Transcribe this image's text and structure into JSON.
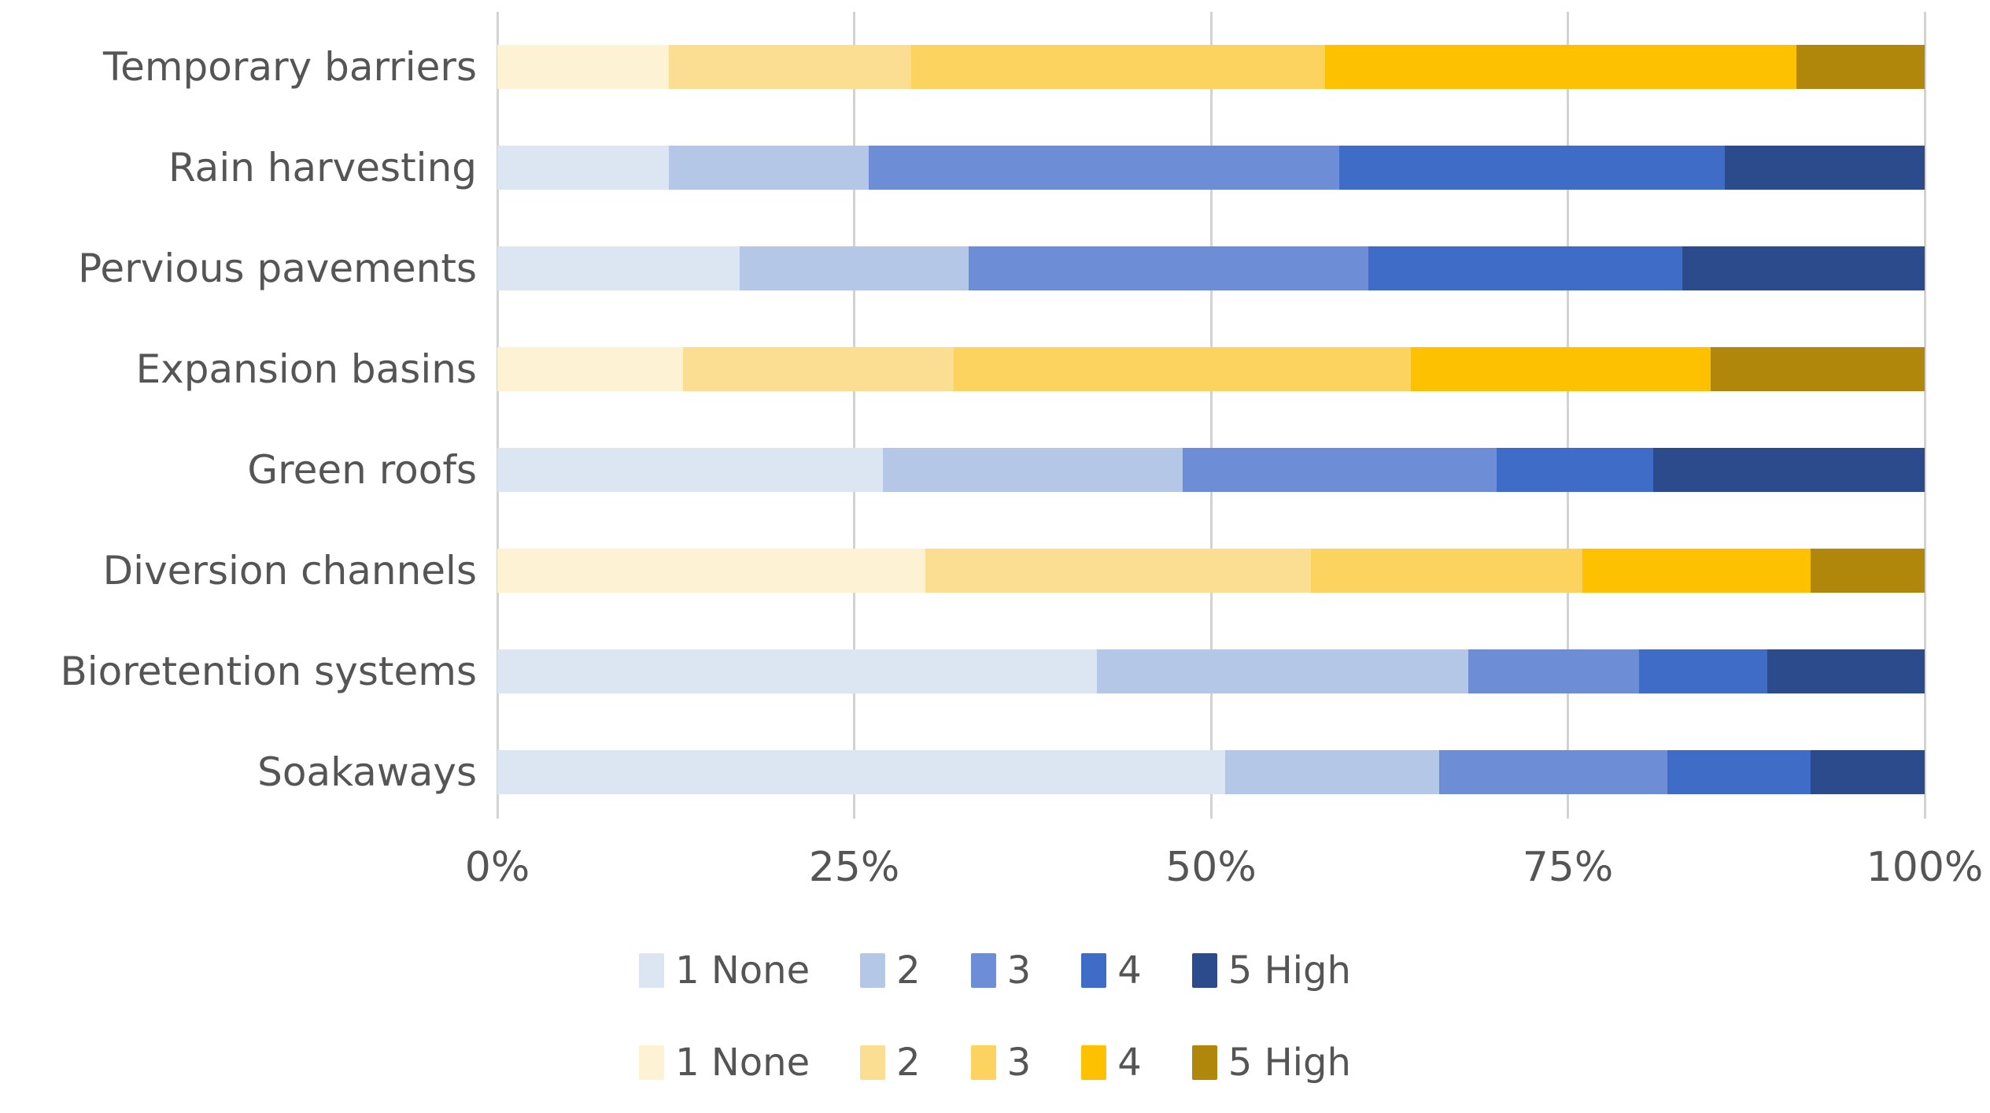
{
  "chart_data": {
    "type": "bar",
    "orientation": "horizontal",
    "stacked": true,
    "units": "%",
    "title": "",
    "xlabel": "",
    "ylabel": "",
    "xlim": [
      0,
      100
    ],
    "grid": true,
    "legend_position": "bottom",
    "xticks": [
      {
        "label": "0%",
        "value": 0
      },
      {
        "label": "25%",
        "value": 25
      },
      {
        "label": "50%",
        "value": 50
      },
      {
        "label": "75%",
        "value": 75
      },
      {
        "label": "100%",
        "value": 100
      }
    ],
    "levels": [
      "1 None",
      "2",
      "3",
      "4",
      "5 High"
    ],
    "rows": [
      {
        "label": "Temporary barriers",
        "palette": "yellow",
        "values": [
          12,
          17,
          29,
          33,
          9
        ]
      },
      {
        "label": "Rain harvesting",
        "palette": "blue",
        "values": [
          12,
          14,
          33,
          27,
          14
        ]
      },
      {
        "label": "Pervious pavements",
        "palette": "blue",
        "values": [
          17,
          16,
          28,
          22,
          17
        ]
      },
      {
        "label": "Expansion basins",
        "palette": "yellow",
        "values": [
          13,
          19,
          32,
          21,
          15
        ]
      },
      {
        "label": "Green roofs",
        "palette": "blue",
        "values": [
          27,
          21,
          22,
          11,
          19
        ]
      },
      {
        "label": "Diversion channels",
        "palette": "yellow",
        "values": [
          30,
          27,
          19,
          16,
          8
        ]
      },
      {
        "label": "Bioretention systems",
        "palette": "blue",
        "values": [
          42,
          26,
          12,
          9,
          11
        ]
      },
      {
        "label": "Soakaways",
        "palette": "blue",
        "values": [
          51,
          15,
          16,
          10,
          8
        ]
      }
    ],
    "colors": {
      "blue": [
        "#DCE5F2",
        "#B4C7E7",
        "#6D8ED6",
        "#3E6CC6",
        "#2B4B8C"
      ],
      "yellow": [
        "#FDF2D3",
        "#FBDE92",
        "#FCD35E",
        "#FEC102",
        "#B0870A"
      ],
      "gridline": "#D2D2D2",
      "text": "#555555"
    },
    "legends": [
      {
        "palette": "blue",
        "items": [
          "1 None",
          "2",
          "3",
          "4",
          "5 High"
        ]
      },
      {
        "palette": "yellow",
        "items": [
          "1 None",
          "2",
          "3",
          "4",
          "5 High"
        ]
      }
    ]
  }
}
